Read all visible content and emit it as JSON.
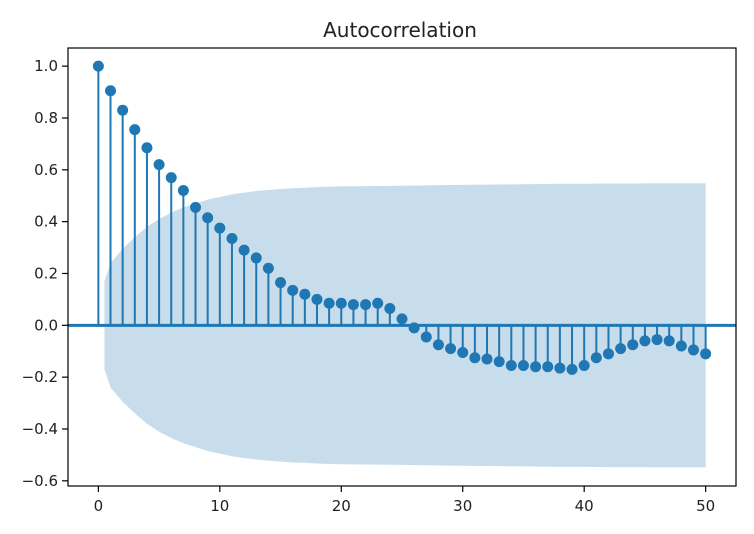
{
  "chart_data": {
    "type": "stem",
    "title": "Autocorrelation",
    "xlabel": "",
    "ylabel": "",
    "xlim": [
      -2.5,
      52.5
    ],
    "ylim": [
      -0.62,
      1.07
    ],
    "xticks": [
      0,
      10,
      20,
      30,
      40,
      50
    ],
    "xtick_labels": [
      "0",
      "10",
      "20",
      "30",
      "40",
      "50"
    ],
    "yticks": [
      -0.6,
      -0.4,
      -0.2,
      0.0,
      0.2,
      0.4,
      0.6,
      0.8,
      1.0
    ],
    "ytick_labels": [
      "−0.6",
      "−0.4",
      "−0.2",
      "0.0",
      "0.2",
      "0.4",
      "0.6",
      "0.8",
      "1.0"
    ],
    "grid": false,
    "colors": {
      "stem": "#1f77b4",
      "confidence_band": "#1f77b4",
      "confidence_band_opacity": 0.25
    },
    "series": [
      {
        "lags": [
          0,
          1,
          2,
          3,
          4,
          5,
          6,
          7,
          8,
          9,
          10,
          11,
          12,
          13,
          14,
          15,
          16,
          17,
          18,
          19,
          20,
          21,
          22,
          23,
          24,
          25,
          26,
          27,
          28,
          29,
          30,
          31,
          32,
          33,
          34,
          35,
          36,
          37,
          38,
          39,
          40,
          41,
          42,
          43,
          44,
          45,
          46,
          47,
          48,
          49,
          50
        ],
        "values": [
          1.0,
          0.905,
          0.83,
          0.755,
          0.685,
          0.62,
          0.57,
          0.52,
          0.455,
          0.415,
          0.375,
          0.335,
          0.29,
          0.26,
          0.22,
          0.165,
          0.135,
          0.12,
          0.1,
          0.085,
          0.085,
          0.08,
          0.08,
          0.085,
          0.065,
          0.025,
          -0.01,
          -0.045,
          -0.075,
          -0.09,
          -0.105,
          -0.125,
          -0.13,
          -0.14,
          -0.155,
          -0.155,
          -0.16,
          -0.16,
          -0.165,
          -0.17,
          -0.155,
          -0.125,
          -0.11,
          -0.09,
          -0.075,
          -0.06,
          -0.055,
          -0.06,
          -0.08,
          -0.095,
          -0.11
        ]
      }
    ],
    "confidence_interval": {
      "lags": [
        0.5,
        1,
        2,
        3,
        4,
        5,
        6,
        7,
        8,
        9,
        10,
        11,
        12,
        13,
        14,
        15,
        16,
        17,
        18,
        19,
        20,
        22,
        24,
        26,
        28,
        30,
        32,
        34,
        36,
        38,
        40,
        42,
        44,
        46,
        48,
        50
      ],
      "upper": [
        0.17,
        0.24,
        0.295,
        0.34,
        0.38,
        0.41,
        0.435,
        0.455,
        0.47,
        0.485,
        0.495,
        0.505,
        0.512,
        0.518,
        0.522,
        0.526,
        0.529,
        0.531,
        0.533,
        0.535,
        0.536,
        0.537,
        0.538,
        0.539,
        0.541,
        0.542,
        0.543,
        0.544,
        0.545,
        0.546,
        0.546,
        0.547,
        0.547,
        0.548,
        0.548,
        0.548
      ]
    }
  }
}
